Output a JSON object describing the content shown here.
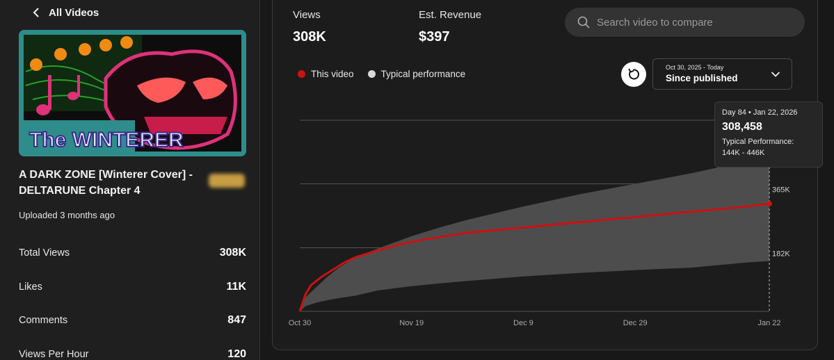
{
  "nav": {
    "back_label": "All Videos"
  },
  "video": {
    "thumbnail_text": "The WINTERER",
    "title": "A DARK ZONE [Winterer Cover] - DELTARUNE Chapter 4",
    "uploaded": "Uploaded 3 months ago"
  },
  "stats": [
    {
      "label": "Total Views",
      "value": "308K"
    },
    {
      "label": "Likes",
      "value": "11K"
    },
    {
      "label": "Comments",
      "value": "847"
    },
    {
      "label": "Views Per Hour",
      "value": "120"
    }
  ],
  "metrics": {
    "views": {
      "label": "Views",
      "value": "308K"
    },
    "revenue": {
      "label": "Est. Revenue",
      "value": "$397"
    }
  },
  "search": {
    "placeholder": "Search video to compare"
  },
  "legend": {
    "this_video": "This video",
    "typical": "Typical performance"
  },
  "date_select": {
    "range": "Oct 30, 2025 - Today",
    "value": "Since published"
  },
  "tooltip": {
    "header": "Day 84 • Jan 22, 2026",
    "value": "308,458",
    "typical_label": "Typical Performance:",
    "typical_range": "144K - 446K"
  },
  "colors": {
    "this_video": "#cc1111",
    "typical_band": "#4d4d4d",
    "background": "#1c1c1c"
  },
  "chart_data": {
    "type": "line",
    "x_unit": "day",
    "xlim": [
      0,
      84
    ],
    "ylim": [
      0,
      547
    ],
    "x_ticks": [
      {
        "day": 0,
        "label": "Oct 30"
      },
      {
        "day": 20,
        "label": "Nov 19"
      },
      {
        "day": 40,
        "label": "Dec 9"
      },
      {
        "day": 60,
        "label": "Dec 29"
      },
      {
        "day": 84,
        "label": "Jan 22"
      }
    ],
    "y_ticks": [
      {
        "value": 182,
        "label": "182K"
      },
      {
        "value": 365,
        "label": "365K"
      },
      {
        "value": 547,
        "label": ""
      }
    ],
    "series": [
      {
        "name": "This video",
        "x": [
          0,
          1,
          2,
          4,
          6,
          8,
          10,
          14,
          18,
          22,
          26,
          30,
          40,
          50,
          60,
          70,
          80,
          84
        ],
        "values": [
          0,
          48,
          75,
          100,
          120,
          140,
          155,
          175,
          192,
          205,
          215,
          225,
          240,
          255,
          270,
          285,
          300,
          308
        ]
      }
    ],
    "band": {
      "name": "Typical performance",
      "x": [
        0,
        1,
        3,
        5,
        7,
        10,
        14,
        20,
        25,
        30,
        40,
        50,
        60,
        70,
        80,
        84
      ],
      "lower": [
        0,
        15,
        25,
        32,
        38,
        45,
        60,
        72,
        80,
        87,
        100,
        110,
        118,
        125,
        140,
        144
      ],
      "upper": [
        0,
        40,
        70,
        100,
        125,
        155,
        180,
        215,
        240,
        262,
        300,
        335,
        365,
        395,
        430,
        446
      ]
    },
    "marker": {
      "day": 84,
      "value": 308
    }
  }
}
